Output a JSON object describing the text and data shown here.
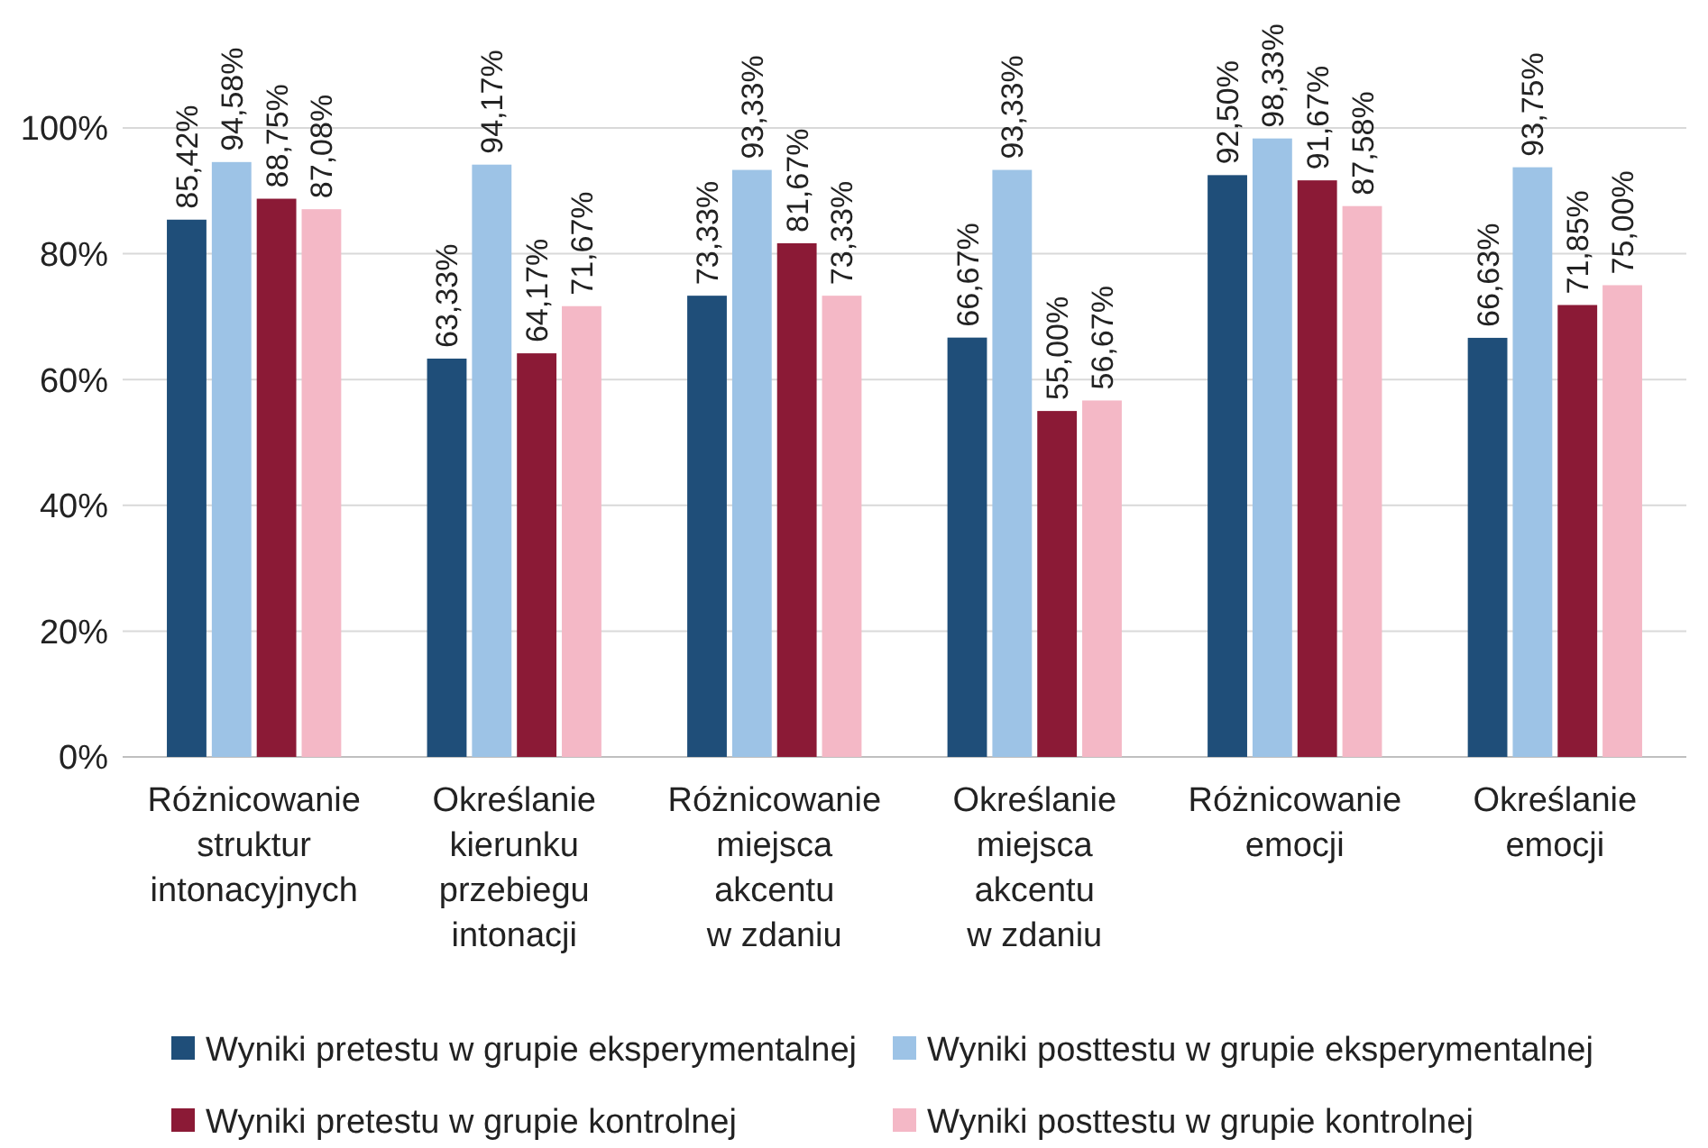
{
  "chart_data": {
    "type": "bar",
    "categories": [
      "Różnicowanie\nstruktur\nintonacyjnych",
      "Określanie\nkierunku\nprzebiegu\nintonacji",
      "Różnicowanie\nmiejsca\nakcentu\nw zdaniu",
      "Określanie\nmiejsca\nakcentu\nw zdaniu",
      "Różnicowanie\nemocji",
      "Określanie\nemocji"
    ],
    "series": [
      {
        "name": "Wyniki pretestu w grupie eksperymentalnej",
        "color": "#1f4e79",
        "values": [
          85.42,
          63.33,
          73.33,
          66.67,
          92.5,
          66.63
        ],
        "value_labels": [
          "85,42%",
          "63,33%",
          "73,33%",
          "66,67%",
          "92,50%",
          "66,63%"
        ]
      },
      {
        "name": "Wyniki posttestu w grupie eksperymentalnej",
        "color": "#9dc3e6",
        "values": [
          94.58,
          94.17,
          93.33,
          93.33,
          98.33,
          93.75
        ],
        "value_labels": [
          "94,58%",
          "94,17%",
          "93,33%",
          "93,33%",
          "98,33%",
          "93,75%"
        ]
      },
      {
        "name": "Wyniki pretestu w grupie kontrolnej",
        "color": "#8b1a36",
        "values": [
          88.75,
          64.17,
          81.67,
          55.0,
          91.67,
          71.85
        ],
        "value_labels": [
          "88,75%",
          "64,17%",
          "81,67%",
          "55,00%",
          "91,67%",
          "71,85%"
        ]
      },
      {
        "name": "Wyniki posttestu w grupie kontrolnej",
        "color": "#f4b8c6",
        "values": [
          87.08,
          71.67,
          73.33,
          56.67,
          87.58,
          75.0
        ],
        "value_labels": [
          "87,08%",
          "71,67%",
          "73,33%",
          "56,67%",
          "87,58%",
          "75,00%"
        ]
      }
    ],
    "ylim": [
      0,
      100
    ],
    "yticks": [
      {
        "value": 0,
        "label": "0%"
      },
      {
        "value": 20,
        "label": "20%"
      },
      {
        "value": 40,
        "label": "40%"
      },
      {
        "value": 60,
        "label": "60%"
      },
      {
        "value": 80,
        "label": "80%"
      },
      {
        "value": 100,
        "label": "100%"
      }
    ],
    "grid": "y",
    "legend": "bottom"
  }
}
